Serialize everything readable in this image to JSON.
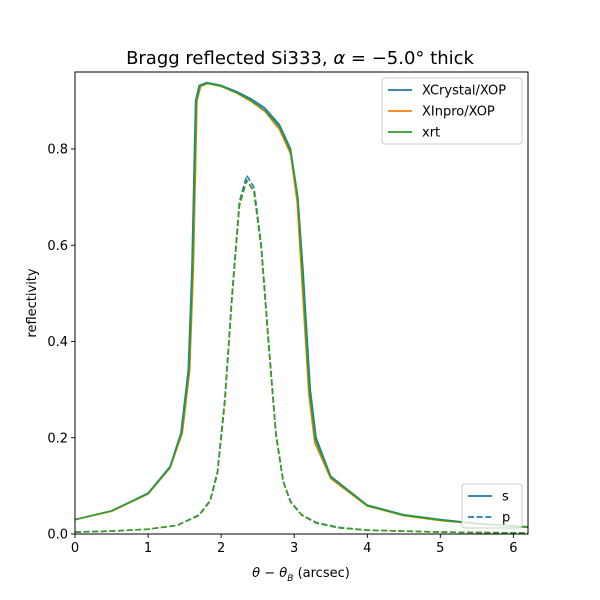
{
  "chart_data": {
    "type": "line",
    "title": "Bragg reflected Si333, α = −5.0° thick",
    "xlabel": "θ − θ_B (arcsec)",
    "ylabel": "reflectivity",
    "xlim": [
      0,
      6.2
    ],
    "ylim": [
      0,
      0.96
    ],
    "xticks": [
      0,
      1,
      2,
      3,
      4,
      5,
      6
    ],
    "yticks": [
      0.0,
      0.2,
      0.4,
      0.6,
      0.8
    ],
    "grid": false,
    "legend_series": {
      "placement": "top-right",
      "entries": [
        {
          "name": "XCrystal/XOP",
          "color": "#1f77b4"
        },
        {
          "name": "XInpro/XOP",
          "color": "#ff7f0e"
        },
        {
          "name": "xrt",
          "color": "#2ca02c"
        }
      ]
    },
    "legend_polarization": {
      "placement": "bottom-right",
      "entries": [
        {
          "name": "s",
          "style": "solid",
          "color": "#1f77b4"
        },
        {
          "name": "p",
          "style": "dashed",
          "color": "#1f77b4"
        }
      ]
    },
    "series": [
      {
        "name": "XCrystal/XOP",
        "polarization": "s",
        "color": "#1f77b4",
        "style": "solid",
        "x": [
          0,
          0.5,
          1.0,
          1.3,
          1.45,
          1.55,
          1.6,
          1.65,
          1.7,
          1.8,
          2.0,
          2.2,
          2.4,
          2.6,
          2.8,
          2.95,
          3.05,
          3.12,
          3.18,
          3.22,
          3.3,
          3.5,
          4.0,
          4.5,
          5.0,
          5.5,
          6.2
        ],
        "y": [
          0.03,
          0.048,
          0.085,
          0.14,
          0.21,
          0.34,
          0.55,
          0.9,
          0.932,
          0.938,
          0.932,
          0.92,
          0.905,
          0.885,
          0.85,
          0.8,
          0.7,
          0.55,
          0.4,
          0.3,
          0.2,
          0.12,
          0.06,
          0.04,
          0.03,
          0.022,
          0.015
        ]
      },
      {
        "name": "XInpro/XOP",
        "polarization": "s",
        "color": "#ff7f0e",
        "style": "solid",
        "x": [
          0,
          0.5,
          1.0,
          1.3,
          1.47,
          1.57,
          1.62,
          1.67,
          1.72,
          1.82,
          2.0,
          2.2,
          2.4,
          2.6,
          2.8,
          2.95,
          3.04,
          3.1,
          3.16,
          3.2,
          3.28,
          3.5,
          4.0,
          4.5,
          5.0,
          5.5,
          6.2
        ],
        "y": [
          0.03,
          0.047,
          0.083,
          0.137,
          0.21,
          0.34,
          0.55,
          0.9,
          0.93,
          0.936,
          0.93,
          0.917,
          0.9,
          0.878,
          0.84,
          0.79,
          0.69,
          0.54,
          0.39,
          0.29,
          0.19,
          0.115,
          0.058,
          0.038,
          0.028,
          0.021,
          0.014
        ]
      },
      {
        "name": "xrt",
        "polarization": "s",
        "color": "#2ca02c",
        "style": "solid",
        "x": [
          0,
          0.5,
          1.0,
          1.3,
          1.46,
          1.56,
          1.61,
          1.66,
          1.71,
          1.81,
          2.0,
          2.2,
          2.4,
          2.6,
          2.8,
          2.95,
          3.05,
          3.11,
          3.17,
          3.21,
          3.29,
          3.5,
          4.0,
          4.5,
          5.0,
          5.5,
          6.2
        ],
        "y": [
          0.03,
          0.048,
          0.084,
          0.138,
          0.21,
          0.34,
          0.55,
          0.9,
          0.931,
          0.937,
          0.931,
          0.918,
          0.902,
          0.88,
          0.845,
          0.795,
          0.695,
          0.545,
          0.395,
          0.295,
          0.195,
          0.118,
          0.059,
          0.039,
          0.029,
          0.021,
          0.014
        ]
      },
      {
        "name": "XCrystal/XOP",
        "polarization": "p",
        "color": "#1f77b4",
        "style": "dashed",
        "x": [
          0,
          0.5,
          1.0,
          1.4,
          1.7,
          1.85,
          1.95,
          2.05,
          2.15,
          2.25,
          2.35,
          2.45,
          2.55,
          2.65,
          2.75,
          2.85,
          2.95,
          3.1,
          3.3,
          3.6,
          4.0,
          5.0,
          6.2
        ],
        "y": [
          0.004,
          0.006,
          0.01,
          0.018,
          0.04,
          0.07,
          0.13,
          0.28,
          0.5,
          0.69,
          0.745,
          0.72,
          0.6,
          0.4,
          0.21,
          0.11,
          0.068,
          0.04,
          0.024,
          0.014,
          0.008,
          0.004,
          0.002
        ]
      },
      {
        "name": "XInpro/XOP",
        "polarization": "p",
        "color": "#ff7f0e",
        "style": "dashed",
        "x": [
          0,
          0.5,
          1.0,
          1.4,
          1.7,
          1.85,
          1.95,
          2.05,
          2.15,
          2.25,
          2.35,
          2.45,
          2.55,
          2.65,
          2.75,
          2.85,
          2.95,
          3.1,
          3.3,
          3.6,
          4.0,
          5.0,
          6.2
        ],
        "y": [
          0.004,
          0.006,
          0.01,
          0.018,
          0.039,
          0.068,
          0.125,
          0.27,
          0.49,
          0.68,
          0.735,
          0.71,
          0.59,
          0.39,
          0.205,
          0.108,
          0.066,
          0.039,
          0.023,
          0.013,
          0.008,
          0.004,
          0.002
        ]
      },
      {
        "name": "xrt",
        "polarization": "p",
        "color": "#2ca02c",
        "style": "dashed",
        "x": [
          0,
          0.5,
          1.0,
          1.4,
          1.7,
          1.85,
          1.95,
          2.05,
          2.15,
          2.25,
          2.35,
          2.45,
          2.55,
          2.65,
          2.75,
          2.85,
          2.95,
          3.1,
          3.3,
          3.6,
          4.0,
          5.0,
          6.2
        ],
        "y": [
          0.004,
          0.006,
          0.01,
          0.018,
          0.039,
          0.069,
          0.127,
          0.275,
          0.495,
          0.685,
          0.735,
          0.712,
          0.595,
          0.395,
          0.207,
          0.109,
          0.067,
          0.04,
          0.023,
          0.013,
          0.008,
          0.004,
          0.002
        ]
      }
    ]
  }
}
